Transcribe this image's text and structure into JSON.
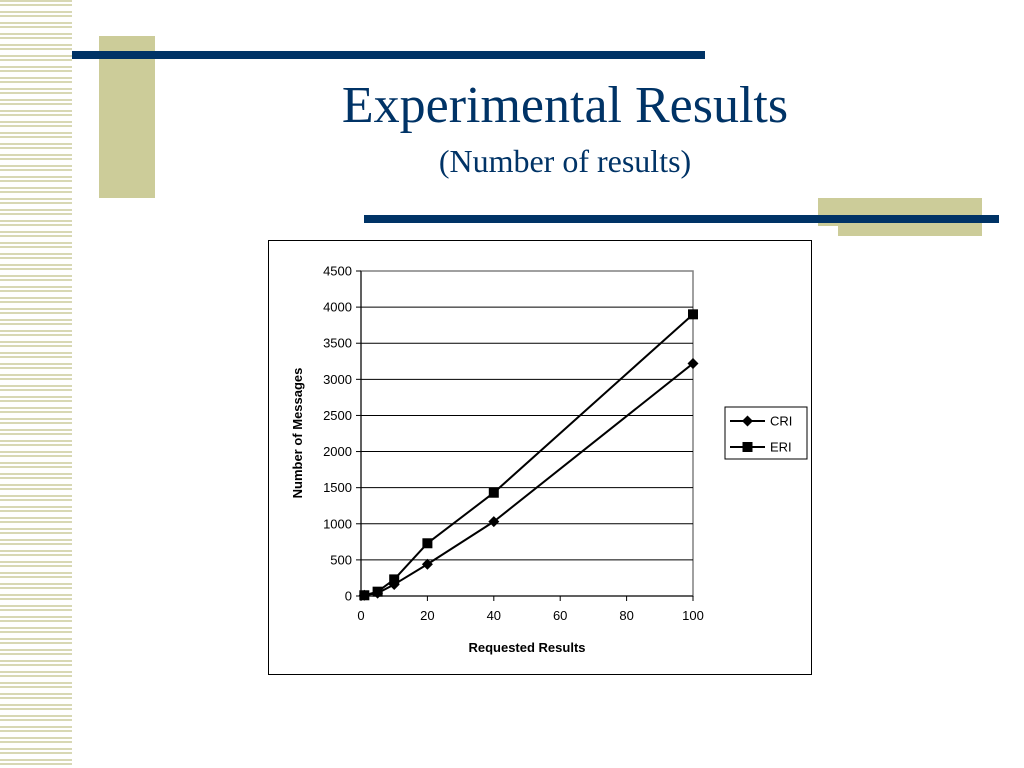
{
  "slide": {
    "title": "Experimental Results",
    "subtitle": "(Number of results)",
    "colors": {
      "title": "#003366",
      "rule": "#003366",
      "accent_block": "#cccc99"
    }
  },
  "chart_data": {
    "type": "line",
    "xlabel": "Requested Results",
    "ylabel": "Number of Messages",
    "x_ticks": [
      "0",
      "20",
      "40",
      "60",
      "80",
      "100"
    ],
    "y_ticks": [
      "0",
      "500",
      "1000",
      "1500",
      "2000",
      "2500",
      "3000",
      "3500",
      "4000",
      "4500"
    ],
    "xlim": [
      0,
      100
    ],
    "ylim": [
      0,
      4500
    ],
    "grid": "horizontal",
    "legend_position": "right",
    "series": [
      {
        "name": "CRI",
        "marker": "diamond",
        "x": [
          1,
          5,
          10,
          20,
          40,
          100
        ],
        "y": [
          10,
          40,
          160,
          440,
          1030,
          3220
        ]
      },
      {
        "name": "ERI",
        "marker": "square",
        "x": [
          1,
          5,
          10,
          20,
          40,
          100
        ],
        "y": [
          10,
          60,
          230,
          730,
          1430,
          3900
        ]
      }
    ]
  }
}
